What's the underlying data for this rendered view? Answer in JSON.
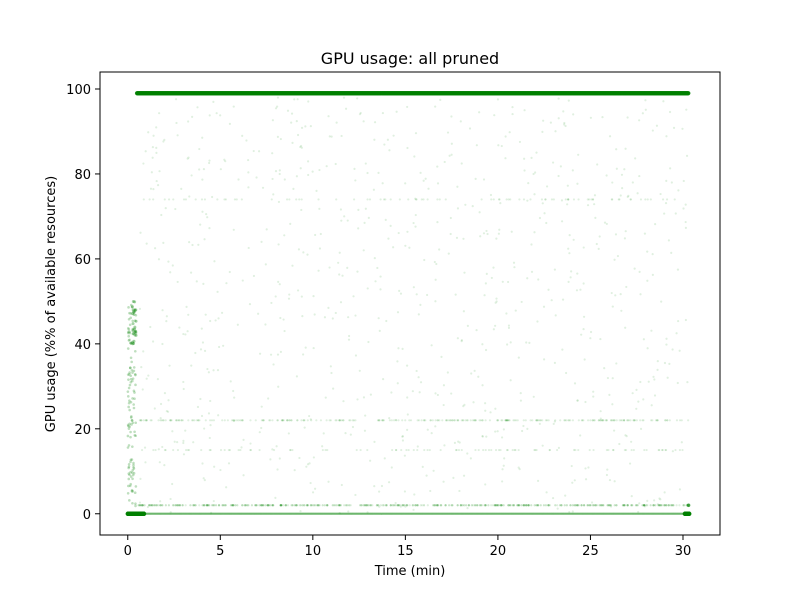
{
  "chart_data": {
    "type": "scatter",
    "title": "GPU usage: all pruned",
    "xlabel": "Time (min)",
    "ylabel": "GPU usage (%% of available resources)",
    "xlim": [
      -1.5,
      32
    ],
    "ylim": [
      -5,
      104
    ],
    "xticks": [
      0,
      5,
      10,
      15,
      20,
      25,
      30
    ],
    "yticks": [
      0,
      20,
      40,
      60,
      80,
      100
    ],
    "grid": false,
    "color": "#008000",
    "series": [
      {
        "x_range": [
          0.5,
          30.3
        ],
        "y": 99,
        "note_density": "dense"
      },
      {
        "x_range": [
          0,
          30.3
        ],
        "y": 0,
        "note_density": "dense"
      },
      {
        "x_range": [
          0,
          0.4
        ],
        "y_range": [
          0,
          50
        ],
        "note_density": "medium"
      },
      {
        "x_range": [
          0.5,
          30.3
        ],
        "y_range": [
          0,
          99
        ],
        "note_density": "sparse"
      }
    ]
  }
}
